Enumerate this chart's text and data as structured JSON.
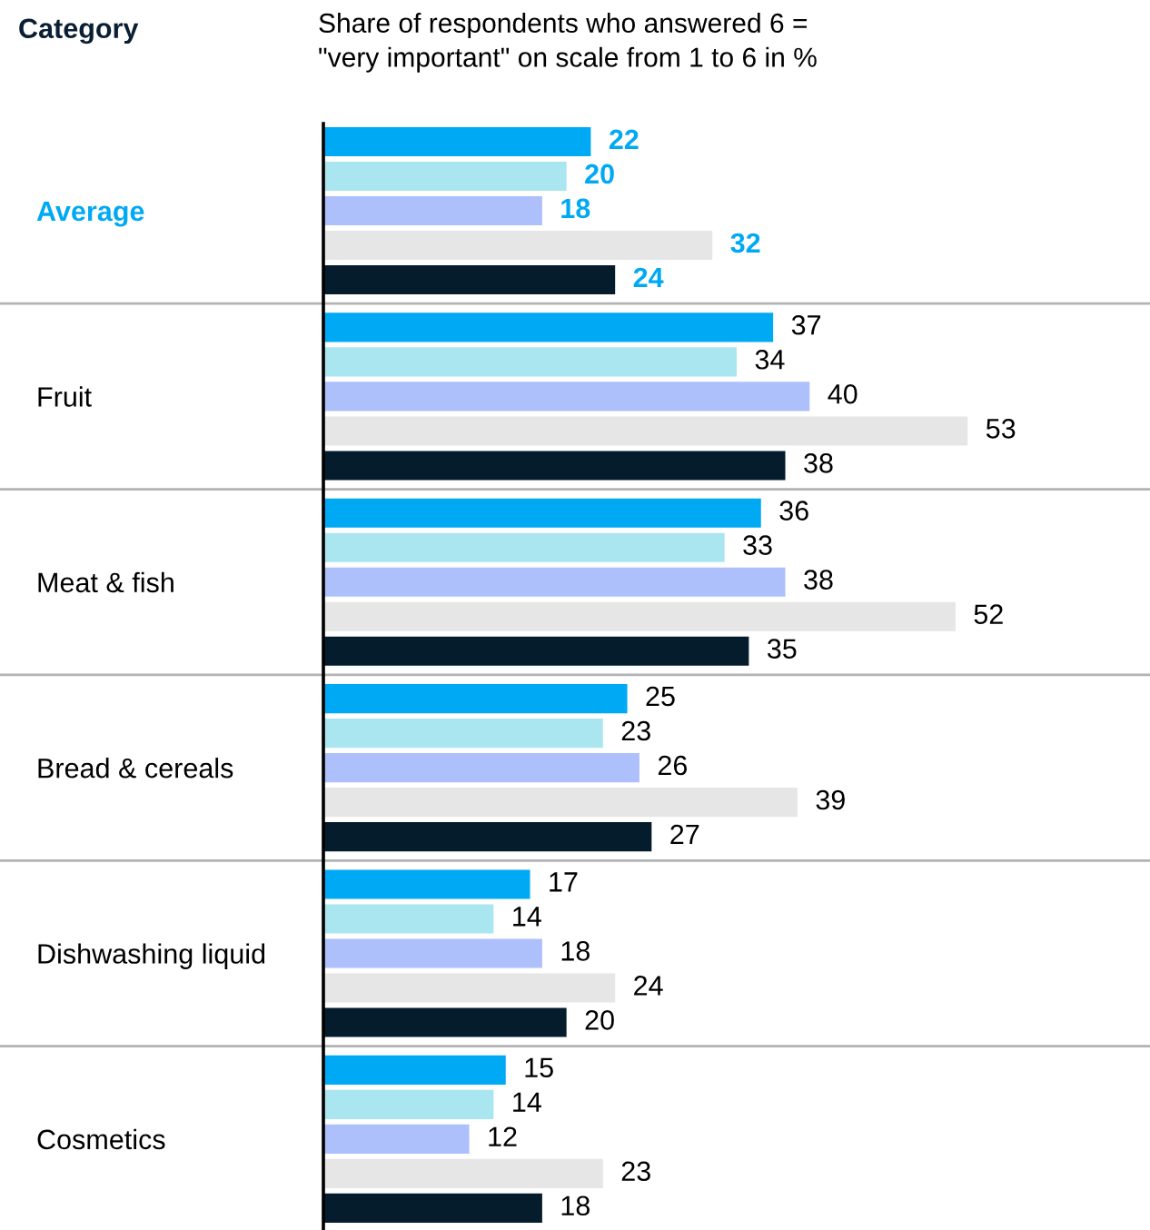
{
  "chart_data": {
    "type": "bar",
    "orientation": "horizontal",
    "title": "Share of respondents who answered 6 =\n\"very important\" on scale from 1 to 6 in %",
    "ylabel": "Category",
    "categories": [
      "Average",
      "Fruit",
      "Meat & fish",
      "Bread & cereals",
      "Dishwashing liquid",
      "Cosmetics"
    ],
    "series": [
      {
        "color": "#00a9f4",
        "values": [
          22,
          37,
          36,
          25,
          17,
          15
        ]
      },
      {
        "color": "#aae6f0",
        "values": [
          20,
          34,
          33,
          23,
          14,
          14
        ]
      },
      {
        "color": "#adc0fc",
        "values": [
          18,
          40,
          38,
          26,
          18,
          12
        ]
      },
      {
        "color": "#e6e6e6",
        "values": [
          32,
          53,
          52,
          39,
          24,
          23
        ]
      },
      {
        "color": "#051c2c",
        "values": [
          24,
          38,
          35,
          27,
          20,
          18
        ]
      }
    ],
    "xlim": [
      0,
      68
    ],
    "tick_labels": "y",
    "data_labels": true,
    "grid": "y"
  }
}
